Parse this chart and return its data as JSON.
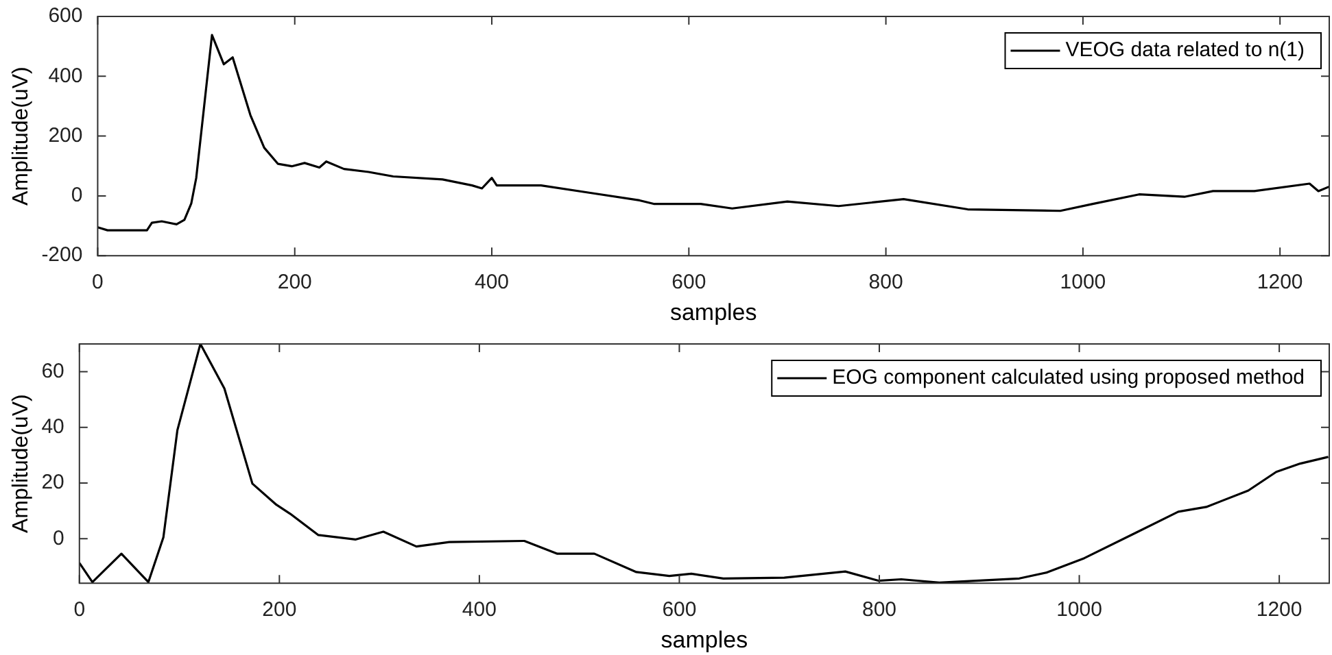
{
  "chart_data": [
    {
      "type": "line",
      "xlabel": "samples",
      "ylabel": "Amplitude(uV)",
      "xlim": [
        0,
        1250
      ],
      "xticks": [
        0,
        200,
        400,
        600,
        800,
        1000,
        1200
      ],
      "ylim": [
        -200,
        600
      ],
      "yticks": [
        -200,
        0,
        200,
        400,
        600
      ],
      "legend": "top right",
      "marker": "none",
      "line_style": "solid",
      "grid": false,
      "series": [
        {
          "name": "VEOG data related to n(1)",
          "color": "#000000",
          "x": [
            0,
            10,
            25,
            50,
            55,
            65,
            80,
            88,
            95,
            100,
            116,
            128,
            137,
            155,
            169,
            183,
            197,
            210,
            225,
            232,
            250,
            275,
            300,
            350,
            380,
            390,
            400,
            405,
            450,
            500,
            550,
            565,
            612,
            644,
            700,
            752,
            818,
            883,
            977,
            1010,
            1057,
            1103,
            1132,
            1174,
            1230,
            1239,
            1250
          ],
          "values": [
            -105,
            -115,
            -115,
            -115,
            -90,
            -85,
            -95,
            -80,
            -25,
            60,
            538,
            440,
            463,
            270,
            161,
            107,
            99,
            110,
            95,
            115,
            90,
            80,
            65,
            55,
            35,
            25,
            60,
            35,
            35,
            10,
            -15,
            -27,
            -27,
            -42,
            -19,
            -34,
            -11,
            -45,
            -50,
            -27,
            5,
            -3,
            16,
            16,
            41,
            16,
            31
          ]
        }
      ]
    },
    {
      "type": "line",
      "xlabel": "samples",
      "ylabel": "Amplitude(uV)",
      "xlim": [
        0,
        1250
      ],
      "xticks": [
        0,
        200,
        400,
        600,
        800,
        1000,
        1200
      ],
      "ylim": [
        -16,
        70
      ],
      "yticks": [
        0,
        20,
        40,
        60
      ],
      "legend": "top right",
      "marker": "none",
      "line_style": "solid",
      "grid": false,
      "series": [
        {
          "name": "EOG component calculated using proposed method",
          "color": "#000000",
          "x": [
            0,
            13,
            42,
            69,
            84,
            98,
            121,
            145,
            173,
            197,
            211,
            239,
            276,
            304,
            337,
            370,
            445,
            478,
            515,
            557,
            590,
            612,
            644,
            705,
            766,
            799,
            822,
            860,
            940,
            968,
            1005,
            1057,
            1099,
            1127,
            1169,
            1197,
            1221,
            1249
          ],
          "values": [
            -8.7,
            -15.6,
            -5.4,
            -15.6,
            0.5,
            39,
            70,
            54,
            19.8,
            12.2,
            8.9,
            1.3,
            -0.3,
            2.5,
            -2.8,
            -1.2,
            -0.8,
            -5.4,
            -5.4,
            -12,
            -13.4,
            -12.6,
            -14.3,
            -14,
            -11.8,
            -15.1,
            -14.6,
            -15.8,
            -14.3,
            -12.1,
            -7,
            2.2,
            9.7,
            11.4,
            17.3,
            24,
            27,
            29.4
          ]
        }
      ]
    }
  ]
}
